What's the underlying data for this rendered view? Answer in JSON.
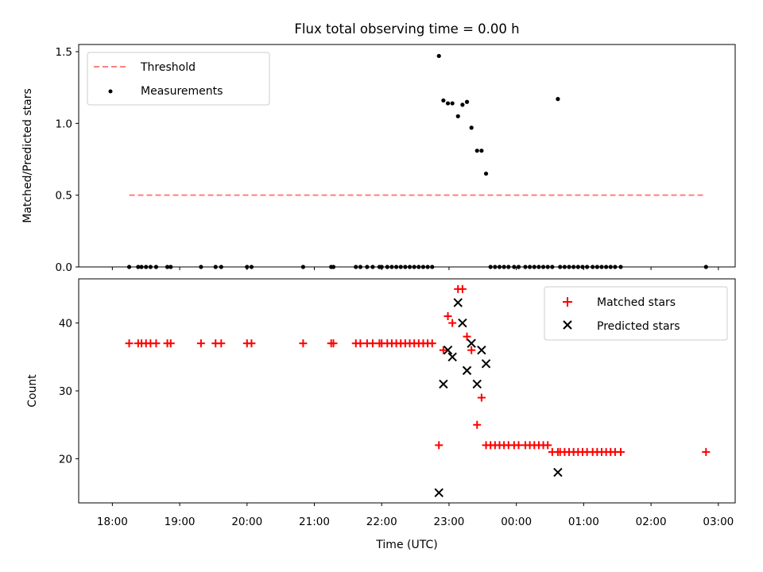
{
  "chart_data": [
    {
      "type": "scatter",
      "title": "Flux total observing time = 0.00 h",
      "xlabel": "",
      "ylabel": "Matched/Predicted stars",
      "ylim": [
        0,
        1.55
      ],
      "yticks": [
        "0.0",
        "0.5",
        "1.0",
        "1.5"
      ],
      "grid": false,
      "legend_position": "upper-left",
      "threshold": {
        "name": "Threshold",
        "value": 0.5,
        "x_start": "18:15",
        "x_end": "02:49",
        "color": "#ff7f7f"
      },
      "series": [
        {
          "name": "Measurements",
          "color": "#000000",
          "points": [
            [
              "18:15",
              0
            ],
            [
              "18:23",
              0
            ],
            [
              "18:26",
              0
            ],
            [
              "18:30",
              0
            ],
            [
              "18:34",
              0
            ],
            [
              "18:39",
              0
            ],
            [
              "18:49",
              0
            ],
            [
              "18:52",
              0
            ],
            [
              "19:19",
              0
            ],
            [
              "19:32",
              0
            ],
            [
              "19:37",
              0
            ],
            [
              "20:00",
              0
            ],
            [
              "20:04",
              0
            ],
            [
              "20:50",
              0
            ],
            [
              "21:15",
              0
            ],
            [
              "21:17",
              0
            ],
            [
              "21:37",
              0
            ],
            [
              "21:41",
              0
            ],
            [
              "21:47",
              0
            ],
            [
              "21:52",
              0
            ],
            [
              "21:58",
              0
            ],
            [
              "22:00",
              0
            ],
            [
              "22:05",
              0
            ],
            [
              "22:09",
              0
            ],
            [
              "22:13",
              0
            ],
            [
              "22:17",
              0
            ],
            [
              "22:21",
              0
            ],
            [
              "22:25",
              0
            ],
            [
              "22:29",
              0
            ],
            [
              "22:33",
              0
            ],
            [
              "22:37",
              0
            ],
            [
              "22:41",
              0
            ],
            [
              "22:45",
              0
            ],
            [
              "22:51",
              1.47
            ],
            [
              "22:55",
              1.16
            ],
            [
              "22:59",
              1.14
            ],
            [
              "23:03",
              1.14
            ],
            [
              "23:08",
              1.05
            ],
            [
              "23:12",
              1.13
            ],
            [
              "23:16",
              1.15
            ],
            [
              "23:20",
              0.97
            ],
            [
              "23:25",
              0.81
            ],
            [
              "23:29",
              0.81
            ],
            [
              "23:33",
              0.65
            ],
            [
              "23:37",
              0
            ],
            [
              "23:41",
              0
            ],
            [
              "23:45",
              0
            ],
            [
              "23:49",
              0
            ],
            [
              "23:53",
              0
            ],
            [
              "23:58",
              0
            ],
            [
              "00:02",
              0
            ],
            [
              "00:08",
              0
            ],
            [
              "00:12",
              0
            ],
            [
              "00:16",
              0
            ],
            [
              "00:20",
              0
            ],
            [
              "00:24",
              0
            ],
            [
              "00:28",
              0
            ],
            [
              "00:32",
              0
            ],
            [
              "00:37",
              1.17
            ],
            [
              "00:39",
              0
            ],
            [
              "00:43",
              0
            ],
            [
              "00:47",
              0
            ],
            [
              "00:51",
              0
            ],
            [
              "00:55",
              0
            ],
            [
              "00:59",
              0
            ],
            [
              "01:03",
              0
            ],
            [
              "01:08",
              0
            ],
            [
              "01:12",
              0
            ],
            [
              "01:16",
              0
            ],
            [
              "01:20",
              0
            ],
            [
              "01:24",
              0
            ],
            [
              "01:28",
              0
            ],
            [
              "01:33",
              0
            ],
            [
              "02:49",
              0
            ]
          ]
        }
      ]
    },
    {
      "type": "scatter",
      "title": "",
      "xlabel": "Time (UTC)",
      "ylabel": "Count",
      "ylim": [
        13.5,
        46.5
      ],
      "yticks": [
        "20",
        "30",
        "40"
      ],
      "xticks": [
        "18:00",
        "19:00",
        "20:00",
        "21:00",
        "22:00",
        "23:00",
        "00:00",
        "01:00",
        "02:00",
        "03:00"
      ],
      "grid": false,
      "legend_position": "upper-right",
      "series": [
        {
          "name": "Matched stars",
          "marker": "plus",
          "color": "#ff0000",
          "points": [
            [
              "18:15",
              37
            ],
            [
              "18:23",
              37
            ],
            [
              "18:26",
              37
            ],
            [
              "18:30",
              37
            ],
            [
              "18:34",
              37
            ],
            [
              "18:39",
              37
            ],
            [
              "18:49",
              37
            ],
            [
              "18:52",
              37
            ],
            [
              "19:19",
              37
            ],
            [
              "19:32",
              37
            ],
            [
              "19:37",
              37
            ],
            [
              "20:00",
              37
            ],
            [
              "20:04",
              37
            ],
            [
              "20:50",
              37
            ],
            [
              "21:15",
              37
            ],
            [
              "21:17",
              37
            ],
            [
              "21:37",
              37
            ],
            [
              "21:41",
              37
            ],
            [
              "21:47",
              37
            ],
            [
              "21:52",
              37
            ],
            [
              "21:58",
              37
            ],
            [
              "22:00",
              37
            ],
            [
              "22:05",
              37
            ],
            [
              "22:09",
              37
            ],
            [
              "22:13",
              37
            ],
            [
              "22:17",
              37
            ],
            [
              "22:21",
              37
            ],
            [
              "22:25",
              37
            ],
            [
              "22:29",
              37
            ],
            [
              "22:33",
              37
            ],
            [
              "22:37",
              37
            ],
            [
              "22:41",
              37
            ],
            [
              "22:45",
              37
            ],
            [
              "22:51",
              22
            ],
            [
              "22:55",
              36
            ],
            [
              "22:59",
              41
            ],
            [
              "23:03",
              40
            ],
            [
              "23:08",
              45
            ],
            [
              "23:12",
              45
            ],
            [
              "23:16",
              38
            ],
            [
              "23:20",
              36
            ],
            [
              "23:25",
              25
            ],
            [
              "23:29",
              29
            ],
            [
              "23:33",
              22
            ],
            [
              "23:37",
              22
            ],
            [
              "23:41",
              22
            ],
            [
              "23:45",
              22
            ],
            [
              "23:49",
              22
            ],
            [
              "23:53",
              22
            ],
            [
              "23:58",
              22
            ],
            [
              "00:02",
              22
            ],
            [
              "00:08",
              22
            ],
            [
              "00:12",
              22
            ],
            [
              "00:16",
              22
            ],
            [
              "00:20",
              22
            ],
            [
              "00:24",
              22
            ],
            [
              "00:28",
              22
            ],
            [
              "00:32",
              21
            ],
            [
              "00:37",
              21
            ],
            [
              "00:39",
              21
            ],
            [
              "00:43",
              21
            ],
            [
              "00:47",
              21
            ],
            [
              "00:51",
              21
            ],
            [
              "00:55",
              21
            ],
            [
              "00:59",
              21
            ],
            [
              "01:03",
              21
            ],
            [
              "01:08",
              21
            ],
            [
              "01:12",
              21
            ],
            [
              "01:16",
              21
            ],
            [
              "01:20",
              21
            ],
            [
              "01:24",
              21
            ],
            [
              "01:28",
              21
            ],
            [
              "01:33",
              21
            ],
            [
              "02:49",
              21
            ]
          ]
        },
        {
          "name": "Predicted stars",
          "marker": "x",
          "color": "#000000",
          "points": [
            [
              "22:51",
              15
            ],
            [
              "22:55",
              31
            ],
            [
              "22:59",
              36
            ],
            [
              "23:03",
              35
            ],
            [
              "23:08",
              43
            ],
            [
              "23:12",
              40
            ],
            [
              "23:16",
              33
            ],
            [
              "23:20",
              37
            ],
            [
              "23:25",
              31
            ],
            [
              "23:29",
              36
            ],
            [
              "23:33",
              34
            ],
            [
              "00:37",
              18
            ]
          ]
        }
      ]
    }
  ]
}
